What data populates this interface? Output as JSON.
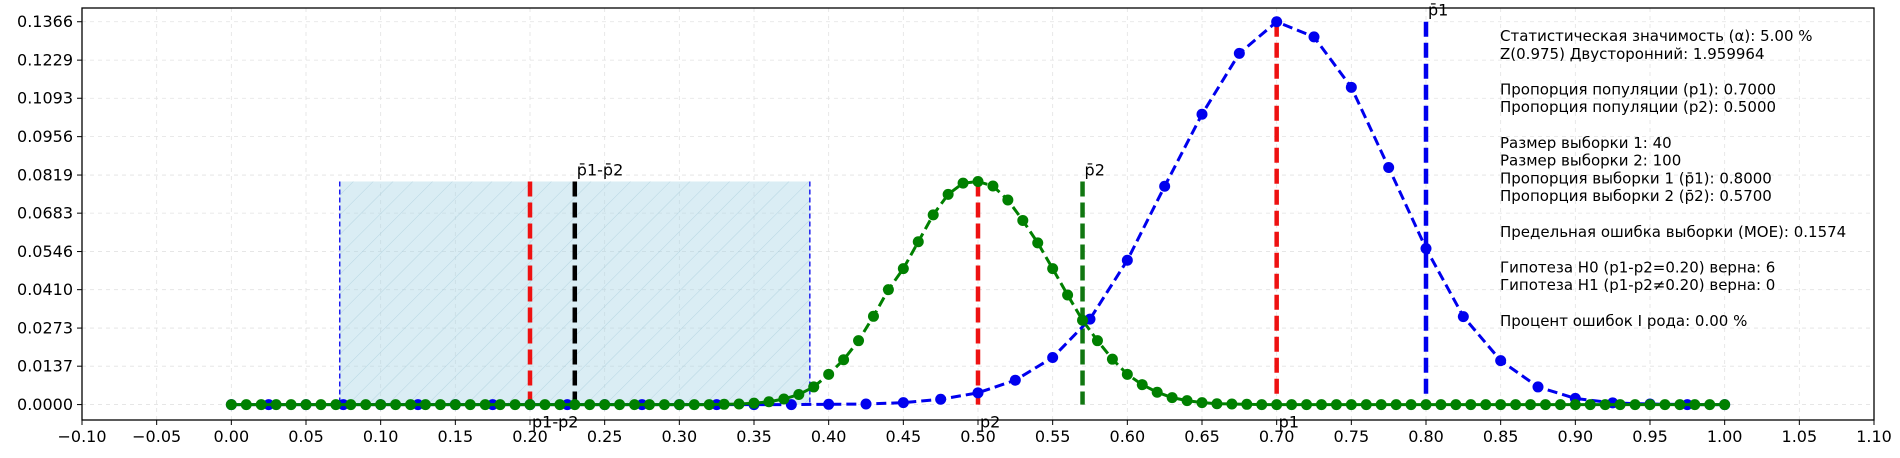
{
  "chart_data": {
    "type": "line",
    "title": "",
    "xlabel": "",
    "ylabel": "",
    "xlim": [
      -0.1,
      1.1
    ],
    "ylim": [
      -0.0055,
      0.1415
    ],
    "grid": true,
    "x_ticks": [
      "−0.10",
      "−0.05",
      "0.00",
      "0.05",
      "0.10",
      "0.15",
      "0.20",
      "0.25",
      "0.30",
      "0.35",
      "0.40",
      "0.45",
      "0.50",
      "0.55",
      "0.60",
      "0.65",
      "0.70",
      "0.75",
      "0.80",
      "0.85",
      "0.90",
      "0.95",
      "1.00",
      "1.05",
      "1.10"
    ],
    "x_tick_values": [
      -0.1,
      -0.05,
      0.0,
      0.05,
      0.1,
      0.15,
      0.2,
      0.25,
      0.3,
      0.35,
      0.4,
      0.45,
      0.5,
      0.55,
      0.6,
      0.65,
      0.7,
      0.75,
      0.8,
      0.85,
      0.9,
      0.95,
      1.0,
      1.05,
      1.1
    ],
    "y_ticks": [
      "0.0000",
      "0.0137",
      "0.0273",
      "0.0410",
      "0.0546",
      "0.0683",
      "0.0819",
      "0.0956",
      "0.1093",
      "0.1229",
      "0.1366"
    ],
    "y_tick_values": [
      0.0,
      0.0137,
      0.0273,
      0.041,
      0.0546,
      0.0683,
      0.0819,
      0.0956,
      0.1093,
      0.1229,
      0.1366
    ],
    "series": [
      {
        "color": "#0000ee",
        "x": [
          0.0,
          0.025,
          0.05,
          0.075,
          0.1,
          0.125,
          0.15,
          0.175,
          0.2,
          0.225,
          0.25,
          0.275,
          0.3,
          0.325,
          0.35,
          0.375,
          0.4,
          0.425,
          0.45,
          0.475,
          0.5,
          0.525,
          0.55,
          0.575,
          0.6,
          0.625,
          0.65,
          0.675,
          0.7,
          0.725,
          0.75,
          0.775,
          0.8,
          0.825,
          0.85,
          0.875,
          0.9,
          0.925,
          0.95,
          0.975,
          1.0
        ],
        "y": [
          0.0,
          0.0,
          0.0,
          0.0,
          0.0,
          0.0,
          0.0,
          0.0,
          0.0,
          0.0,
          0.0,
          0.0,
          0.0,
          0.0,
          0.0,
          0.0,
          0.0001,
          0.0002,
          0.0007,
          0.0019,
          0.0042,
          0.0087,
          0.0168,
          0.0305,
          0.0515,
          0.0779,
          0.1036,
          0.1253,
          0.1366,
          0.1312,
          0.1132,
          0.0846,
          0.0557,
          0.0314,
          0.0157,
          0.0063,
          0.0022,
          0.0006,
          0.0002,
          0.0,
          0.0
        ]
      },
      {
        "color": "#008000",
        "x": [
          0.0,
          0.01,
          0.02,
          0.03,
          0.04,
          0.05,
          0.06,
          0.07,
          0.08,
          0.09,
          0.1,
          0.11,
          0.12,
          0.13,
          0.14,
          0.15,
          0.16,
          0.17,
          0.18,
          0.19,
          0.2,
          0.21,
          0.22,
          0.23,
          0.24,
          0.25,
          0.26,
          0.27,
          0.28,
          0.29,
          0.3,
          0.31,
          0.32,
          0.33,
          0.34,
          0.35,
          0.36,
          0.37,
          0.38,
          0.39,
          0.4,
          0.41,
          0.42,
          0.43,
          0.44,
          0.45,
          0.46,
          0.47,
          0.48,
          0.49,
          0.5,
          0.51,
          0.52,
          0.53,
          0.54,
          0.55,
          0.56,
          0.57,
          0.58,
          0.59,
          0.6,
          0.61,
          0.62,
          0.63,
          0.64,
          0.65,
          0.66,
          0.67,
          0.68,
          0.69,
          0.7,
          0.71,
          0.72,
          0.73,
          0.74,
          0.75,
          0.76,
          0.77,
          0.78,
          0.79,
          0.8,
          0.81,
          0.82,
          0.83,
          0.84,
          0.85,
          0.86,
          0.87,
          0.88,
          0.89,
          0.9,
          0.91,
          0.92,
          0.93,
          0.94,
          0.95,
          0.96,
          0.97,
          0.98,
          0.99,
          1.0
        ],
        "y": [
          0.0,
          0.0,
          0.0,
          0.0,
          0.0,
          0.0,
          0.0,
          0.0,
          0.0,
          0.0,
          0.0,
          0.0,
          0.0,
          0.0,
          0.0,
          0.0,
          0.0,
          0.0,
          0.0,
          0.0,
          0.0,
          0.0,
          0.0,
          0.0,
          0.0,
          0.0,
          0.0,
          0.0,
          0.0,
          0.0,
          0.0,
          0.0,
          0.0,
          0.0001,
          0.0002,
          0.0005,
          0.001,
          0.002,
          0.0036,
          0.0063,
          0.0108,
          0.016,
          0.0228,
          0.0315,
          0.041,
          0.0485,
          0.0581,
          0.0677,
          0.075,
          0.079,
          0.0796,
          0.078,
          0.073,
          0.0657,
          0.0577,
          0.0485,
          0.0391,
          0.0301,
          0.0228,
          0.0162,
          0.0108,
          0.0071,
          0.0044,
          0.0025,
          0.0014,
          0.0007,
          0.0003,
          0.0002,
          0.0001,
          0.0,
          0.0,
          0.0,
          0.0,
          0.0,
          0.0,
          0.0,
          0.0,
          0.0,
          0.0,
          0.0,
          0.0,
          0.0,
          0.0,
          0.0,
          0.0,
          0.0,
          0.0,
          0.0,
          0.0,
          0.0,
          0.0,
          0.0,
          0.0,
          0.0,
          0.0,
          0.0,
          0.0,
          0.0,
          0.0,
          0.0,
          0.0
        ]
      }
    ],
    "shaded_region": {
      "x_start": 0.0726,
      "x_end": 0.3874,
      "y_top": 0.0796,
      "fill": "#add8e6",
      "edge": "#0000ee"
    },
    "vlines": [
      {
        "x": 0.2,
        "y_top": 0.0796,
        "color": "#ee1111",
        "label": "p1-p2",
        "label_pos": "bottom"
      },
      {
        "x": 0.23,
        "y_top": 0.0796,
        "color": "#000000",
        "label": "p̄1-p̄2",
        "label_pos": "top"
      },
      {
        "x": 0.5,
        "y_top": 0.0796,
        "color": "#ee1111",
        "label": "p2",
        "label_pos": "bottom"
      },
      {
        "x": 0.57,
        "y_top": 0.0796,
        "color": "#117711",
        "label": "p̄2",
        "label_pos": "top"
      },
      {
        "x": 0.7,
        "y_top": 0.1366,
        "color": "#ee1111",
        "label": "p1",
        "label_pos": "bottom"
      },
      {
        "x": 0.8,
        "y_top": 0.1366,
        "color": "#0000ee",
        "label": "p̄1",
        "label_pos": "top"
      }
    ],
    "info_lines": [
      "Статистическая значимость (α): 5.00 %",
      "Z(0.975) Двусторонний: 1.959964",
      "",
      "Пропорция популяции (p1): 0.7000",
      "Пропорция популяции (p2): 0.5000",
      "",
      "Размер выборки 1: 40",
      "Размер выборки 2: 100",
      "Пропорция выборки 1 (p̄1): 0.8000",
      "Пропорция выборки 2 (p̄2): 0.5700",
      "",
      "Предельная ошибка выборки (MOE): 0.1574",
      "",
      "Гипотеза H0 (p1-p2=0.20) верна: 6",
      "Гипотеза H1 (p1-p2≠0.20) верна: 0",
      "",
      "Процент ошибок I рода: 0.00 %"
    ]
  }
}
